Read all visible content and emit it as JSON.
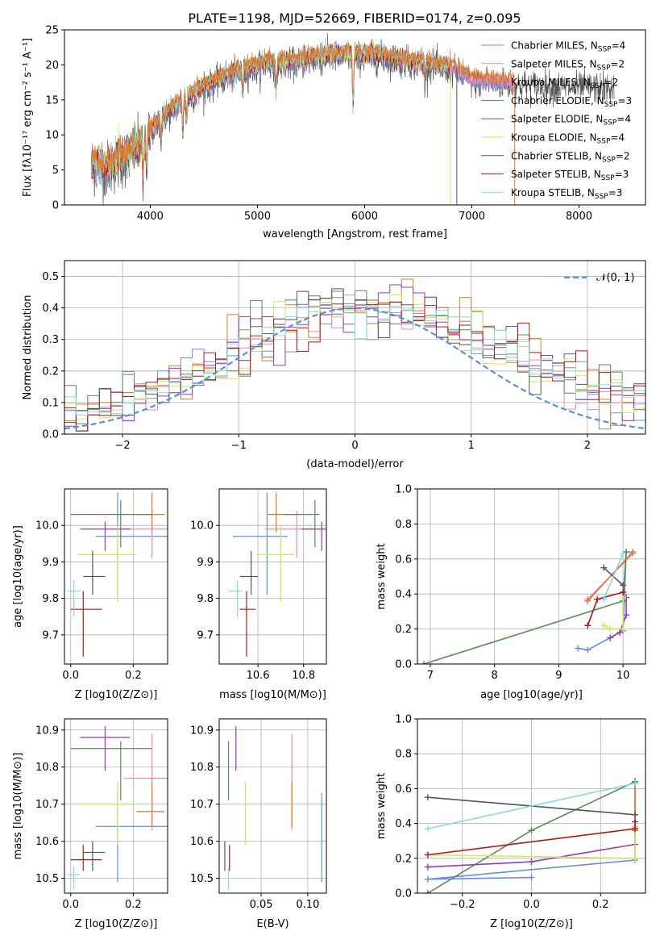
{
  "figure_title": "PLATE=1198, MJD=52669, FIBERID=0174, z=0.095",
  "colors": {
    "Chabrier MILES": "#6a8fd8",
    "Salpeter MILES": "#e68ac0",
    "Kroupa MILES": "#e07a2c",
    "Chabrier ELODIE": "#5a8a5a",
    "Salpeter ELODIE": "#9a3ab8",
    "Kroupa ELODIE": "#cfe85a",
    "Chabrier STELIB": "#555555",
    "Salpeter STELIB": "#b01818",
    "Kroupa STELIB": "#88d8dc",
    "gaussian": "#5b8fd9"
  },
  "legend_labels": [
    {
      "name": "Chabrier MILES",
      "text": "Chabrier MILES, N",
      "sub": "SSP",
      "tail": "=4"
    },
    {
      "name": "Salpeter MILES",
      "text": "Salpeter MILES, N",
      "sub": "SSP",
      "tail": "=2"
    },
    {
      "name": "Kroupa MILES",
      "text": "Kroupa MILES, N",
      "sub": "SSP",
      "tail": "=2"
    },
    {
      "name": "Chabrier ELODIE",
      "text": "Chabrier ELODIE, N",
      "sub": "SSP",
      "tail": "=3"
    },
    {
      "name": "Salpeter ELODIE",
      "text": "Salpeter ELODIE, N",
      "sub": "SSP",
      "tail": "=4"
    },
    {
      "name": "Kroupa ELODIE",
      "text": "Kroupa ELODIE, N",
      "sub": "SSP",
      "tail": "=4"
    },
    {
      "name": "Chabrier STELIB",
      "text": "Chabrier STELIB, N",
      "sub": "SSP",
      "tail": "=2"
    },
    {
      "name": "Salpeter STELIB",
      "text": "Salpeter STELIB, N",
      "sub": "SSP",
      "tail": "=3"
    },
    {
      "name": "Kroupa STELIB",
      "text": "Kroupa STELIB, N",
      "sub": "SSP",
      "tail": "=3"
    }
  ],
  "chart_data": [
    {
      "id": "spectrum",
      "type": "line",
      "xlabel": "wavelength [Angstrom, rest frame]",
      "ylabel": "Flux [fλ10⁻¹⁷ erg cm⁻² s⁻¹ A⁻¹]",
      "xlim": [
        3200,
        8620
      ],
      "ylim": [
        0,
        25
      ],
      "xticks": [
        4000,
        5000,
        6000,
        7000,
        8000
      ],
      "yticks": [
        0,
        5,
        10,
        15,
        20,
        25
      ],
      "legend": "top-right",
      "continuum_knots": {
        "x": [
          3450,
          3600,
          3800,
          3950,
          4100,
          4300,
          4500,
          4700,
          4900,
          5100,
          5300,
          5500,
          5700,
          5900,
          6100,
          6300,
          6500,
          6700,
          6850,
          7000,
          7200,
          7400,
          7600,
          7800,
          8000,
          8200,
          8330
        ],
        "y": [
          6.0,
          5.5,
          7.5,
          9.5,
          12.5,
          15.0,
          17.0,
          18.5,
          19.5,
          20.5,
          20.5,
          21.0,
          21.5,
          21.5,
          21.5,
          21.0,
          20.5,
          20.0,
          19.5,
          18.0,
          17.8,
          17.6,
          17.5,
          17.3,
          17.2,
          17.2,
          17.0
        ]
      },
      "dips": [
        {
          "x": 3933,
          "depth": 6
        },
        {
          "x": 3968,
          "depth": 5
        },
        {
          "x": 4101,
          "depth": 3
        },
        {
          "x": 4304,
          "depth": 4
        },
        {
          "x": 4340,
          "depth": 3
        },
        {
          "x": 4861,
          "depth": 3
        },
        {
          "x": 5175,
          "depth": 4
        },
        {
          "x": 5893,
          "depth": 7
        },
        {
          "x": 6563,
          "depth": 2
        }
      ],
      "spikes": [
        {
          "x": 6800,
          "series": "Kroupa ELODIE",
          "to": 0
        },
        {
          "x": 6860,
          "series": "Chabrier STELIB",
          "to": 0
        },
        {
          "x": 7400,
          "series": "Kroupa MILES",
          "to": 0
        }
      ]
    },
    {
      "id": "residuals",
      "type": "histogram",
      "xlabel": "(data-model)/error",
      "ylabel": "Normed distribution",
      "xlim": [
        -2.5,
        2.5
      ],
      "ylim": [
        0,
        0.55
      ],
      "xticks": [
        -2,
        -1,
        0,
        1,
        2
      ],
      "yticks": [
        0.0,
        0.1,
        0.2,
        0.3,
        0.4,
        0.5
      ],
      "grid": true,
      "legend": "top-right",
      "gaussian_label": "𝒩(0, 1)",
      "bin_width": 0.1
    },
    {
      "id": "age_vs_Z",
      "type": "errorbar",
      "xlabel": "Z [log10(Z/Z⊙)]",
      "ylabel": "age  [log10(age/yr)]",
      "xlim": [
        -0.02,
        0.31
      ],
      "ylim": [
        9.62,
        10.1
      ],
      "xticks": [
        0.0,
        0.2
      ],
      "yticks": [
        9.7,
        9.8,
        9.9,
        10.0
      ],
      "grid": true
    },
    {
      "id": "age_vs_mass",
      "type": "errorbar",
      "xlabel": "mass [log10(M/M⊙)]",
      "xlim": [
        10.43,
        10.9
      ],
      "ylim": [
        9.62,
        10.1
      ],
      "xticks": [
        10.6,
        10.8
      ],
      "yticks": [
        9.7,
        9.8,
        9.9,
        10.0
      ],
      "grid": true
    },
    {
      "id": "massweight_vs_age",
      "type": "line",
      "xlabel": "age  [log10(age/yr)]",
      "ylabel": "mass weight",
      "xlim": [
        6.8,
        10.35
      ],
      "ylim": [
        0,
        1
      ],
      "xticks": [
        7,
        8,
        9,
        10
      ],
      "yticks": [
        0.0,
        0.2,
        0.4,
        0.6,
        0.8,
        1.0
      ],
      "grid": true
    },
    {
      "id": "mass_vs_Z",
      "type": "errorbar",
      "xlabel": "Z [log10(Z/Z⊙)]",
      "ylabel": "mass [log10(M/M⊙)]",
      "xlim": [
        -0.02,
        0.31
      ],
      "ylim": [
        10.46,
        10.93
      ],
      "xticks": [
        0.0,
        0.2
      ],
      "yticks": [
        10.5,
        10.6,
        10.7,
        10.8,
        10.9
      ],
      "grid": true
    },
    {
      "id": "mass_vs_ebv",
      "type": "errorbar",
      "xlabel": "E(B-V)",
      "xlim": [
        0.005,
        0.12
      ],
      "ylim": [
        10.46,
        10.93
      ],
      "xticks": [
        0.05,
        0.1
      ],
      "yticks": [
        10.5,
        10.6,
        10.7,
        10.8,
        10.9
      ],
      "grid": true
    },
    {
      "id": "massweight_vs_Z",
      "type": "line",
      "xlabel": "Z [log10(Z/Z⊙)]",
      "ylabel": "mass weight",
      "xlim": [
        -0.33,
        0.33
      ],
      "ylim": [
        0,
        1
      ],
      "xticks": [
        -0.2,
        0.0,
        0.2
      ],
      "yticks": [
        0.0,
        0.2,
        0.4,
        0.6,
        0.8,
        1.0
      ],
      "grid": true
    }
  ],
  "series_params": [
    {
      "name": "Chabrier MILES",
      "Z": 0.15,
      "Zlo": 0.07,
      "Zhi": 0.22,
      "age": 9.97,
      "agelo": 0.16,
      "agehi": 0.12,
      "mass": 10.64,
      "mlo": 0.15,
      "mhi": 0.09,
      "ebv": 0.115,
      "eblo": 0.14,
      "ebhi": 0.09
    },
    {
      "name": "Salpeter MILES",
      "Z": 0.26,
      "Zlo": 0.09,
      "Zhi": 0.05,
      "age": 9.99,
      "agelo": 0.08,
      "agehi": 0.05,
      "mass": 10.77,
      "mlo": 0.14,
      "mhi": 0.12,
      "ebv": 0.083,
      "eblo": 0.08,
      "ebhi": 0.12
    },
    {
      "name": "Kroupa MILES",
      "Z": 0.26,
      "Zlo": 0.05,
      "Zhi": 0.04,
      "age": 10.03,
      "agelo": 0.05,
      "agehi": 0.06,
      "mass": 10.68,
      "mlo": 0.04,
      "mhi": 0.08,
      "ebv": 0.083,
      "eblo": 0.04,
      "ebhi": 0.08
    },
    {
      "name": "Chabrier ELODIE",
      "Z": 0.16,
      "Zlo": 0.16,
      "Zhi": 0.1,
      "age": 10.03,
      "agelo": 0.09,
      "agehi": 0.04,
      "mass": 10.85,
      "mlo": 0.14,
      "mhi": 0.02,
      "ebv": 0.015,
      "eblo": 0.14,
      "ebhi": 0.02
    },
    {
      "name": "Salpeter ELODIE",
      "Z": 0.11,
      "Zlo": 0.08,
      "Zhi": 0.08,
      "age": 9.99,
      "agelo": 0.06,
      "agehi": 0.02,
      "mass": 10.88,
      "mlo": 0.09,
      "mhi": 0.03,
      "ebv": 0.023,
      "eblo": 0.09,
      "ebhi": 0.03
    },
    {
      "name": "Kroupa ELODIE",
      "Z": 0.15,
      "Zlo": 0.13,
      "Zhi": 0.06,
      "age": 9.92,
      "agelo": 0.13,
      "agehi": 0.08,
      "mass": 10.7,
      "mlo": 0.11,
      "mhi": 0.06,
      "ebv": 0.033,
      "eblo": 0.11,
      "ebhi": 0.06
    },
    {
      "name": "Chabrier STELIB",
      "Z": 0.07,
      "Zlo": 0.03,
      "Zhi": 0.04,
      "age": 9.86,
      "agelo": 0.05,
      "agehi": 0.07,
      "mass": 10.57,
      "mlo": 0.05,
      "mhi": 0.03,
      "ebv": 0.011,
      "eblo": 0.05,
      "ebhi": 0.03
    },
    {
      "name": "Salpeter STELIB",
      "Z": 0.04,
      "Zlo": 0.04,
      "Zhi": 0.06,
      "age": 9.77,
      "agelo": 0.13,
      "agehi": 0.05,
      "mass": 10.55,
      "mlo": 0.03,
      "mhi": 0.04,
      "ebv": 0.016,
      "eblo": 0.03,
      "ebhi": 0.04
    },
    {
      "name": "Kroupa STELIB",
      "Z": 0.01,
      "Zlo": 0.02,
      "Zhi": 0.02,
      "age": 9.82,
      "agelo": 0.07,
      "agehi": 0.03,
      "mass": 10.51,
      "mlo": 0.04,
      "mhi": 0.02,
      "ebv": 0.015,
      "eblo": 0.04,
      "ebhi": 0.02
    }
  ],
  "ssp_components": [
    {
      "name": "Chabrier MILES",
      "ages": [
        9.3,
        9.45,
        10.0,
        10.05
      ],
      "Z": [
        0.0,
        -0.3,
        0.3,
        0.3
      ],
      "w": [
        0.09,
        0.08,
        0.19,
        0.64
      ]
    },
    {
      "name": "Salpeter MILES",
      "ages": [
        9.45,
        10.15
      ],
      "Z": [
        0.3,
        0.3
      ],
      "w": [
        0.37,
        0.63
      ]
    },
    {
      "name": "Kroupa MILES",
      "ages": [
        9.45,
        10.15
      ],
      "Z": [
        0.3,
        0.3
      ],
      "w": [
        0.36,
        0.64
      ]
    },
    {
      "name": "Chabrier ELODIE",
      "ages": [
        6.9,
        10.0,
        10.05
      ],
      "Z": [
        -0.3,
        0.0,
        0.3
      ],
      "w": [
        0.0,
        0.36,
        0.64
      ]
    },
    {
      "name": "Salpeter ELODIE",
      "ages": [
        9.8,
        9.95,
        10.05,
        10.05
      ],
      "Z": [
        -0.3,
        0.0,
        0.3,
        0.3
      ],
      "w": [
        0.15,
        0.18,
        0.28,
        0.38
      ]
    },
    {
      "name": "Kroupa ELODIE",
      "ages": [
        9.7,
        9.8,
        10.0,
        10.0
      ],
      "Z": [
        -0.3,
        0.3,
        0.3,
        0.3
      ],
      "w": [
        0.22,
        0.2,
        0.2,
        0.38
      ]
    },
    {
      "name": "Chabrier STELIB",
      "ages": [
        9.7,
        10.0
      ],
      "Z": [
        -0.3,
        0.3
      ],
      "w": [
        0.55,
        0.45
      ]
    },
    {
      "name": "Salpeter STELIB",
      "ages": [
        9.45,
        9.6,
        10.0
      ],
      "Z": [
        -0.3,
        0.3,
        0.3
      ],
      "w": [
        0.22,
        0.37,
        0.41
      ]
    },
    {
      "name": "Kroupa STELIB",
      "ages": [
        9.7,
        10.0
      ],
      "Z": [
        -0.3,
        0.3
      ],
      "w": [
        0.37,
        0.63
      ]
    }
  ]
}
